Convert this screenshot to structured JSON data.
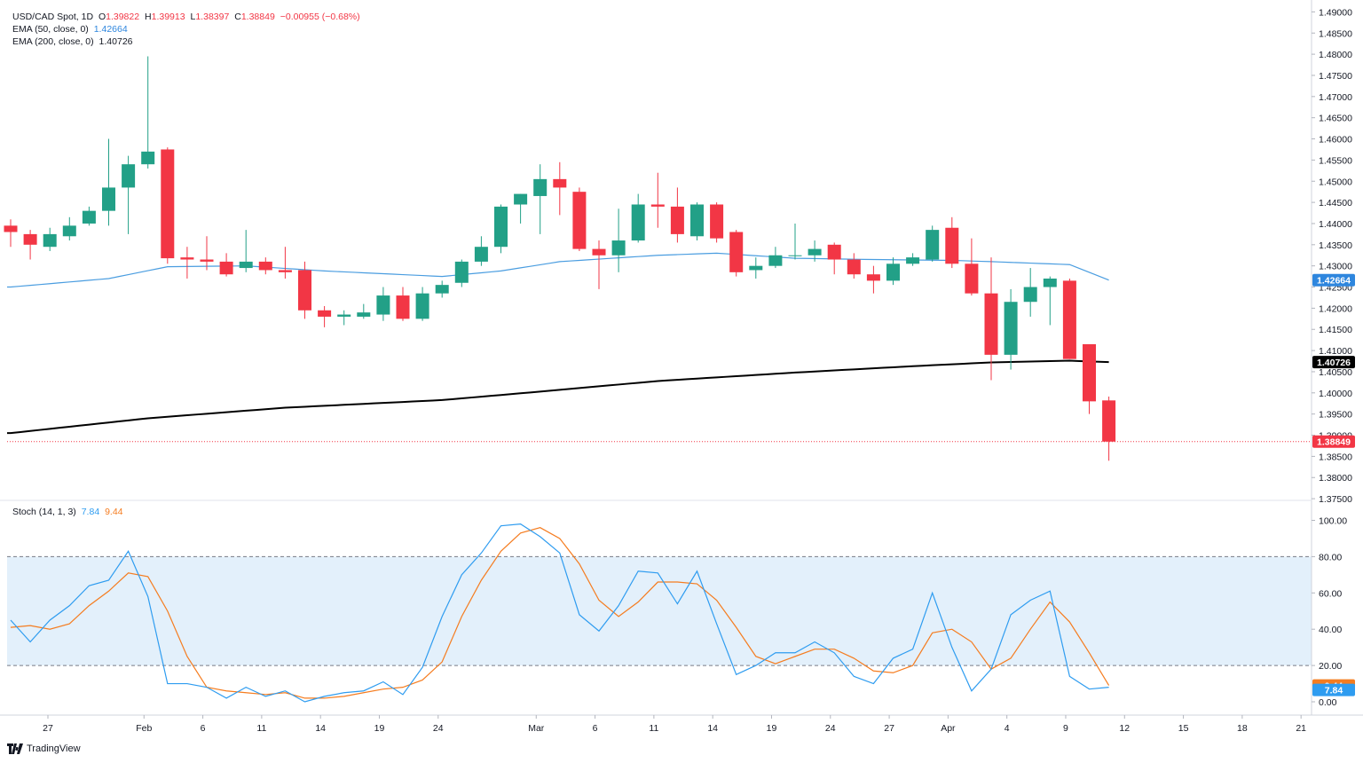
{
  "legend": {
    "symbol": "USD/CAD Spot, 1D",
    "o_label": "O",
    "o": "1.39822",
    "h_label": "H",
    "h": "1.39913",
    "l_label": "L",
    "l": "1.38397",
    "c_label": "C",
    "c": "1.38849",
    "change": "−0.00955 (−0.68%)",
    "ema50_label": "EMA (50, close, 0)",
    "ema50_value": "1.42664",
    "ema200_label": "EMA (200, close, 0)",
    "ema200_value": "1.40726",
    "stoch_label": "Stoch (14, 1, 3)",
    "stoch_k": "7.84",
    "stoch_d": "9.44"
  },
  "brand": "TradingView",
  "colors": {
    "up": "#22a087",
    "down": "#f23645",
    "ema50": "#4a9de0",
    "ema200": "#000000",
    "stoch_k": "#2e9cf0",
    "stoch_d": "#f57c1f",
    "band": "#e3f0fb"
  },
  "chart_data": [
    {
      "type": "candlestick",
      "ylim": [
        1.375,
        1.49
      ],
      "y_ticks": [
        "1.49000",
        "1.48500",
        "1.48000",
        "1.47500",
        "1.47000",
        "1.46500",
        "1.46000",
        "1.45500",
        "1.45000",
        "1.44500",
        "1.44000",
        "1.43500",
        "1.43000",
        "1.42500",
        "1.42000",
        "1.41500",
        "1.41000",
        "1.40500",
        "1.40000",
        "1.39500",
        "1.39000",
        "1.38500",
        "1.38000",
        "1.37500"
      ],
      "x_ticks": [
        "27",
        "Feb",
        "6",
        "11",
        "14",
        "19",
        "24",
        "Mar",
        "6",
        "11",
        "14",
        "19",
        "24",
        "27",
        "Apr",
        "4",
        "9",
        "12",
        "15",
        "18",
        "21"
      ],
      "last_price": "1.38849",
      "candles": [
        {
          "o": 1.4395,
          "h": 1.441,
          "l": 1.4345,
          "c": 1.438
        },
        {
          "o": 1.4375,
          "h": 1.4385,
          "l": 1.4315,
          "c": 1.435
        },
        {
          "o": 1.4345,
          "h": 1.439,
          "l": 1.4335,
          "c": 1.4375
        },
        {
          "o": 1.437,
          "h": 1.4415,
          "l": 1.436,
          "c": 1.4395
        },
        {
          "o": 1.44,
          "h": 1.444,
          "l": 1.4395,
          "c": 1.443
        },
        {
          "o": 1.443,
          "h": 1.46,
          "l": 1.4395,
          "c": 1.4485
        },
        {
          "o": 1.4485,
          "h": 1.456,
          "l": 1.4375,
          "c": 1.454
        },
        {
          "o": 1.454,
          "h": 1.4795,
          "l": 1.453,
          "c": 1.457
        },
        {
          "o": 1.4575,
          "h": 1.458,
          "l": 1.4305,
          "c": 1.4318
        },
        {
          "o": 1.432,
          "h": 1.4345,
          "l": 1.427,
          "c": 1.4315
        },
        {
          "o": 1.4315,
          "h": 1.437,
          "l": 1.429,
          "c": 1.431
        },
        {
          "o": 1.431,
          "h": 1.433,
          "l": 1.4275,
          "c": 1.428
        },
        {
          "o": 1.4295,
          "h": 1.4385,
          "l": 1.4285,
          "c": 1.431
        },
        {
          "o": 1.431,
          "h": 1.432,
          "l": 1.428,
          "c": 1.429
        },
        {
          "o": 1.429,
          "h": 1.4345,
          "l": 1.427,
          "c": 1.4285
        },
        {
          "o": 1.429,
          "h": 1.431,
          "l": 1.4175,
          "c": 1.4195
        },
        {
          "o": 1.4195,
          "h": 1.4205,
          "l": 1.4155,
          "c": 1.418
        },
        {
          "o": 1.418,
          "h": 1.4195,
          "l": 1.416,
          "c": 1.4185
        },
        {
          "o": 1.418,
          "h": 1.421,
          "l": 1.4175,
          "c": 1.419
        },
        {
          "o": 1.4185,
          "h": 1.425,
          "l": 1.417,
          "c": 1.423
        },
        {
          "o": 1.423,
          "h": 1.425,
          "l": 1.417,
          "c": 1.4175
        },
        {
          "o": 1.4175,
          "h": 1.425,
          "l": 1.417,
          "c": 1.4235
        },
        {
          "o": 1.4235,
          "h": 1.4265,
          "l": 1.4225,
          "c": 1.4255
        },
        {
          "o": 1.426,
          "h": 1.4315,
          "l": 1.425,
          "c": 1.431
        },
        {
          "o": 1.431,
          "h": 1.437,
          "l": 1.43,
          "c": 1.4345
        },
        {
          "o": 1.4345,
          "h": 1.4445,
          "l": 1.433,
          "c": 1.444
        },
        {
          "o": 1.4445,
          "h": 1.447,
          "l": 1.44,
          "c": 1.447
        },
        {
          "o": 1.4465,
          "h": 1.454,
          "l": 1.4375,
          "c": 1.4505
        },
        {
          "o": 1.4505,
          "h": 1.4545,
          "l": 1.442,
          "c": 1.4485
        },
        {
          "o": 1.4475,
          "h": 1.4485,
          "l": 1.4335,
          "c": 1.434
        },
        {
          "o": 1.434,
          "h": 1.436,
          "l": 1.4245,
          "c": 1.4325
        },
        {
          "o": 1.4325,
          "h": 1.4435,
          "l": 1.4285,
          "c": 1.436
        },
        {
          "o": 1.436,
          "h": 1.447,
          "l": 1.4355,
          "c": 1.4445
        },
        {
          "o": 1.4445,
          "h": 1.452,
          "l": 1.439,
          "c": 1.444
        },
        {
          "o": 1.444,
          "h": 1.4485,
          "l": 1.4355,
          "c": 1.4375
        },
        {
          "o": 1.437,
          "h": 1.445,
          "l": 1.436,
          "c": 1.4445
        },
        {
          "o": 1.4445,
          "h": 1.445,
          "l": 1.4355,
          "c": 1.4365
        },
        {
          "o": 1.438,
          "h": 1.4385,
          "l": 1.4275,
          "c": 1.4285
        },
        {
          "o": 1.429,
          "h": 1.432,
          "l": 1.427,
          "c": 1.43
        },
        {
          "o": 1.43,
          "h": 1.4345,
          "l": 1.4295,
          "c": 1.4325
        },
        {
          "o": 1.4325,
          "h": 1.44,
          "l": 1.4315,
          "c": 1.4325
        },
        {
          "o": 1.4325,
          "h": 1.436,
          "l": 1.431,
          "c": 1.434
        },
        {
          "o": 1.435,
          "h": 1.4355,
          "l": 1.428,
          "c": 1.4315
        },
        {
          "o": 1.4315,
          "h": 1.433,
          "l": 1.427,
          "c": 1.428
        },
        {
          "o": 1.428,
          "h": 1.43,
          "l": 1.4235,
          "c": 1.4265
        },
        {
          "o": 1.4265,
          "h": 1.432,
          "l": 1.4255,
          "c": 1.4305
        },
        {
          "o": 1.4305,
          "h": 1.433,
          "l": 1.43,
          "c": 1.432
        },
        {
          "o": 1.4315,
          "h": 1.4395,
          "l": 1.431,
          "c": 1.4385
        },
        {
          "o": 1.439,
          "h": 1.4415,
          "l": 1.4295,
          "c": 1.4305
        },
        {
          "o": 1.4305,
          "h": 1.4365,
          "l": 1.423,
          "c": 1.4235
        },
        {
          "o": 1.4235,
          "h": 1.432,
          "l": 1.403,
          "c": 1.409
        },
        {
          "o": 1.409,
          "h": 1.4245,
          "l": 1.4055,
          "c": 1.4215
        },
        {
          "o": 1.4215,
          "h": 1.4295,
          "l": 1.418,
          "c": 1.425
        },
        {
          "o": 1.425,
          "h": 1.4275,
          "l": 1.416,
          "c": 1.427
        },
        {
          "o": 1.4265,
          "h": 1.427,
          "l": 1.408,
          "c": 1.408
        },
        {
          "o": 1.4115,
          "h": 1.4115,
          "l": 1.395,
          "c": 1.398
        },
        {
          "o": 1.39822,
          "h": 1.39913,
          "l": 1.38397,
          "c": 1.38849
        }
      ],
      "ema50": [
        {
          "i": 0,
          "v": 1.425
        },
        {
          "i": 5,
          "v": 1.427
        },
        {
          "i": 8,
          "v": 1.4298
        },
        {
          "i": 12,
          "v": 1.43
        },
        {
          "i": 16,
          "v": 1.4288
        },
        {
          "i": 22,
          "v": 1.4275
        },
        {
          "i": 25,
          "v": 1.4288
        },
        {
          "i": 28,
          "v": 1.431
        },
        {
          "i": 33,
          "v": 1.4325
        },
        {
          "i": 36,
          "v": 1.433
        },
        {
          "i": 40,
          "v": 1.4318
        },
        {
          "i": 44,
          "v": 1.4315
        },
        {
          "i": 48,
          "v": 1.4313
        },
        {
          "i": 50,
          "v": 1.431
        },
        {
          "i": 54,
          "v": 1.4303
        },
        {
          "i": 56,
          "v": 1.42664
        }
      ],
      "ema200": [
        {
          "i": 0,
          "v": 1.3905
        },
        {
          "i": 7,
          "v": 1.394
        },
        {
          "i": 14,
          "v": 1.3965
        },
        {
          "i": 22,
          "v": 1.3983
        },
        {
          "i": 27,
          "v": 1.4003
        },
        {
          "i": 33,
          "v": 1.4028
        },
        {
          "i": 40,
          "v": 1.4048
        },
        {
          "i": 46,
          "v": 1.4063
        },
        {
          "i": 50,
          "v": 1.4072
        },
        {
          "i": 54,
          "v": 1.4076
        },
        {
          "i": 56,
          "v": 1.40726
        }
      ]
    },
    {
      "type": "line",
      "title": "Stoch (14, 1, 3)",
      "ylim": [
        0,
        100
      ],
      "y_ticks": [
        "100.00",
        "80.00",
        "60.00",
        "40.00",
        "20.00",
        "0.00"
      ],
      "band": [
        20,
        80
      ],
      "series": [
        {
          "name": "7.84",
          "values": [
            45,
            33,
            45,
            53,
            64,
            67,
            83,
            58,
            10,
            10,
            8,
            2,
            8,
            3,
            6,
            0,
            3,
            5,
            6,
            11,
            4,
            19,
            47,
            70,
            82,
            97,
            98,
            91,
            82,
            48,
            39,
            53,
            72,
            71,
            54,
            72,
            43,
            15,
            20,
            27,
            27,
            33,
            27,
            14,
            10,
            24,
            29,
            60,
            30,
            6,
            18,
            48,
            56,
            61,
            14,
            7,
            8
          ]
        },
        {
          "name": "9.44",
          "values": [
            41,
            42,
            40,
            43,
            53,
            61,
            71,
            69,
            50,
            25,
            8,
            6,
            5,
            4,
            5,
            2,
            2,
            3,
            5,
            7,
            8,
            12,
            22,
            47,
            67,
            83,
            93,
            96,
            90,
            76,
            56,
            47,
            55,
            66,
            66,
            65,
            56,
            41,
            25,
            21,
            25,
            29,
            29,
            24,
            17,
            16,
            20,
            38,
            40,
            33,
            18,
            24,
            40,
            55,
            44,
            27,
            9
          ]
        }
      ]
    }
  ]
}
